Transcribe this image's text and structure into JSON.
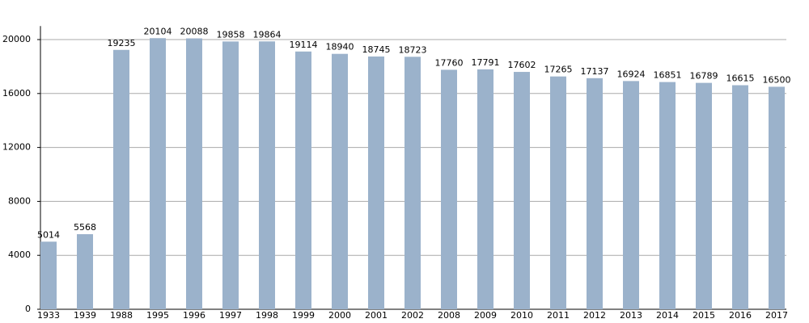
{
  "chart_data": {
    "type": "bar",
    "categories": [
      "1933",
      "1939",
      "1988",
      "1995",
      "1996",
      "1997",
      "1998",
      "1999",
      "2000",
      "2001",
      "2002",
      "2008",
      "2009",
      "2010",
      "2011",
      "2012",
      "2013",
      "2014",
      "2015",
      "2016",
      "2017"
    ],
    "values": [
      5014,
      5568,
      19235,
      20104,
      20088,
      19858,
      19864,
      19114,
      18940,
      18745,
      18723,
      17760,
      17791,
      17602,
      17265,
      17137,
      16924,
      16851,
      16789,
      16615,
      16500
    ],
    "color": "#9bb2cb",
    "ylim": [
      0,
      21000
    ],
    "yticks": [
      0,
      4000,
      8000,
      12000,
      16000,
      20000
    ],
    "grid": true
  }
}
